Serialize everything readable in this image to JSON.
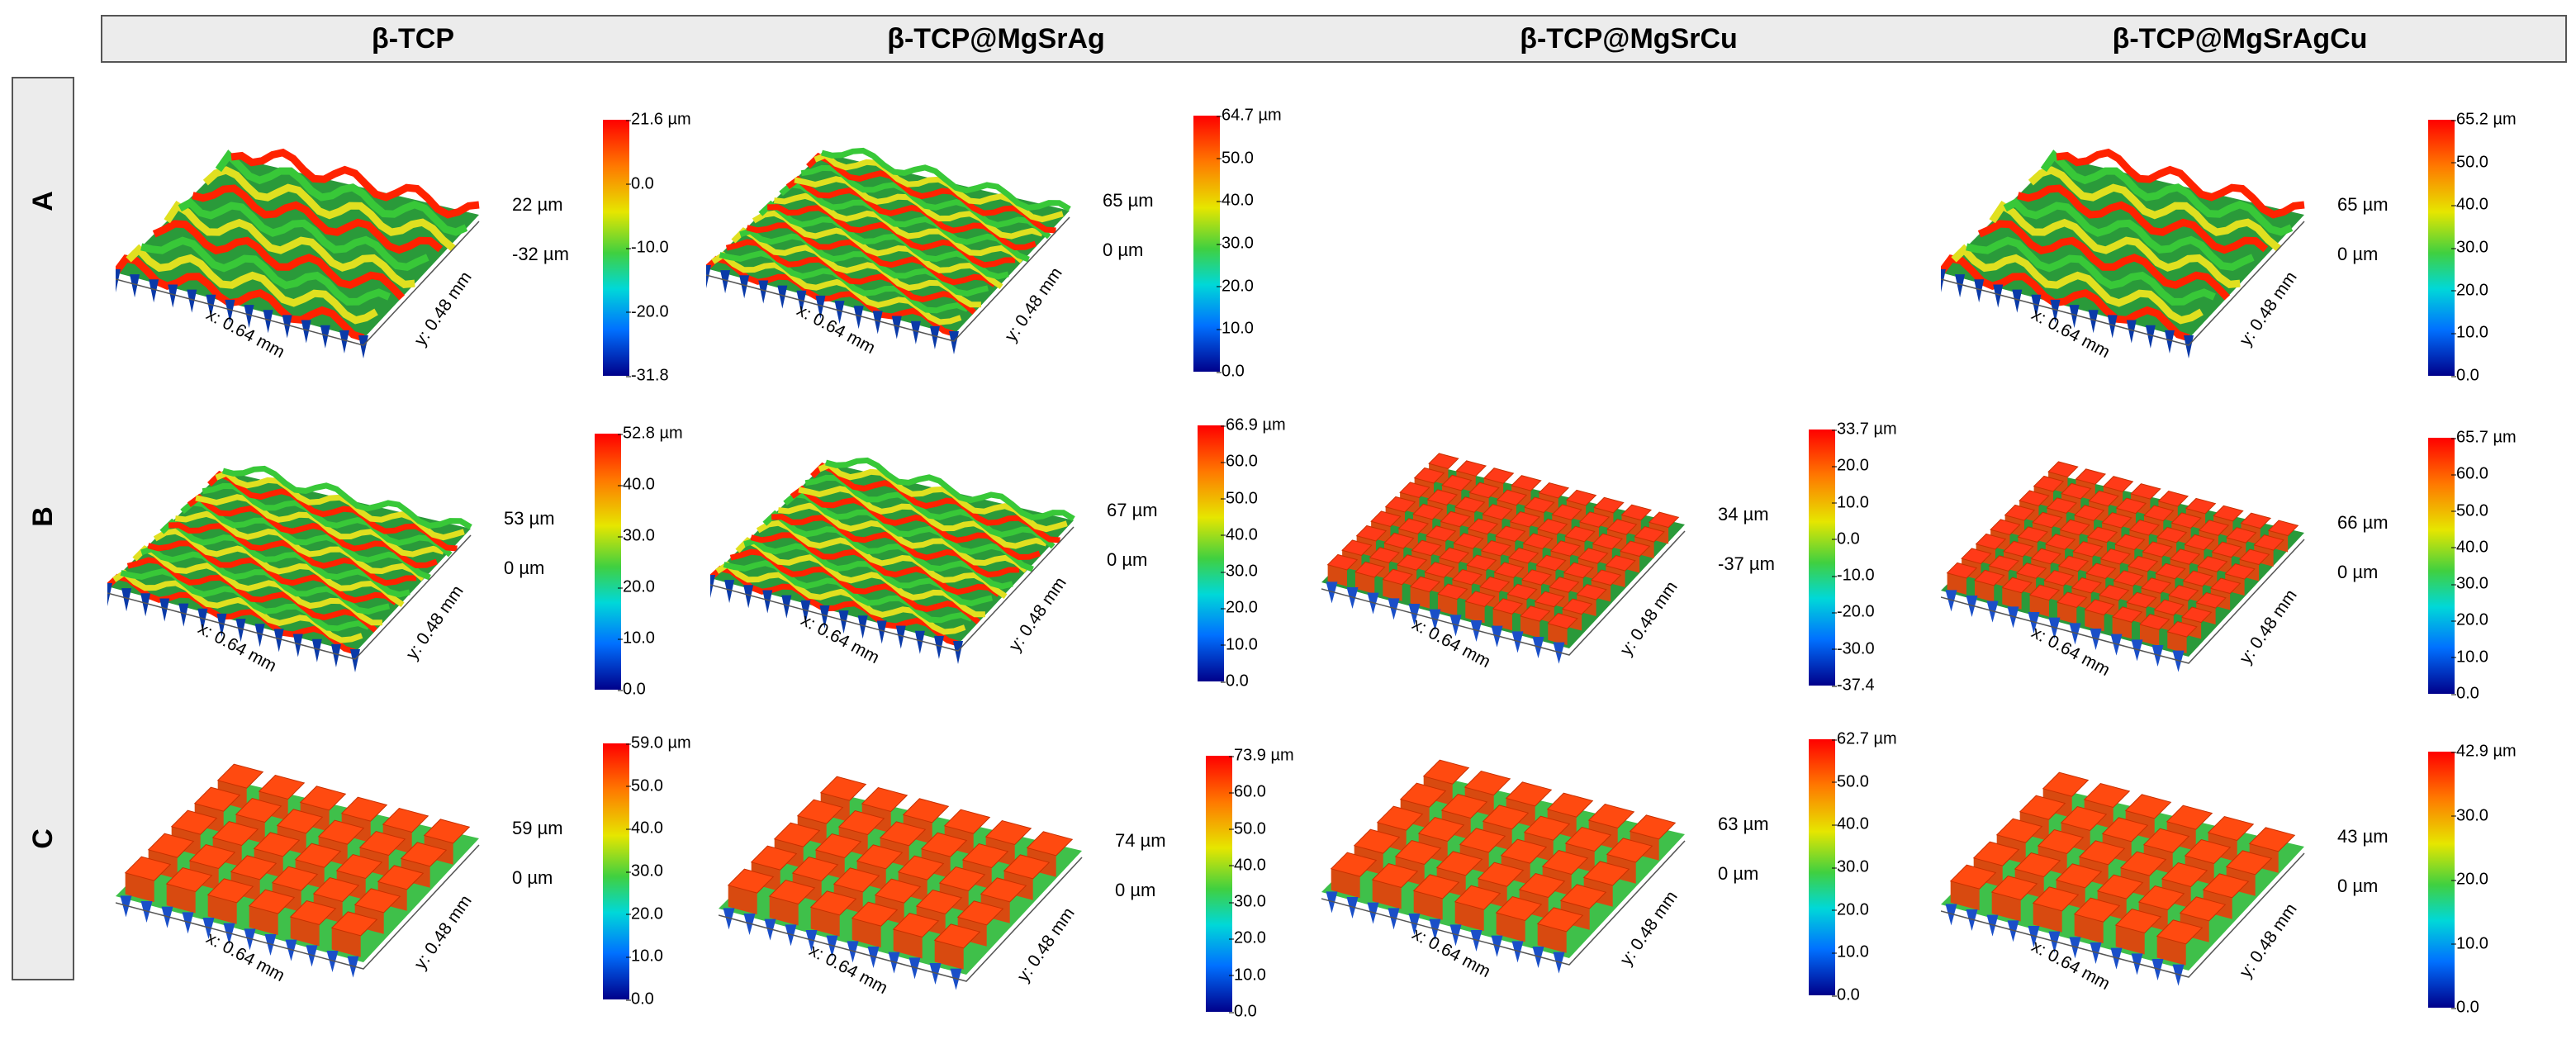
{
  "columns": [
    "β-TCP",
    "β-TCP@MgSrAg",
    "β-TCP@MgSrCu",
    "β-TCP@MgSrAgCu"
  ],
  "rows": [
    "A",
    "B",
    "C"
  ],
  "panels": [
    {
      "id": "A1",
      "row": "A",
      "col": "β-TCP",
      "scale_hi": "22 µm",
      "scale_lo": "-32 µm",
      "colorbar": [
        "21.6 µm",
        "0.0",
        "-10.0",
        "-20.0",
        "-31.8"
      ],
      "x_axis": "x: 0.64 mm",
      "y_axis": "y: 0.48 mm",
      "pattern": "ridges"
    },
    {
      "id": "A2",
      "row": "A",
      "col": "β-TCP@MgSrAg",
      "scale_hi": "65 µm",
      "scale_lo": "0 µm",
      "colorbar": [
        "64.7 µm",
        "50.0",
        "40.0",
        "30.0",
        "20.0",
        "10.0",
        "0.0"
      ],
      "x_axis": "x: 0.64 mm",
      "y_axis": "y: 0.48 mm",
      "pattern": "rough"
    },
    {
      "id": "A4",
      "row": "A",
      "col": "β-TCP@MgSrAgCu",
      "scale_hi": "65 µm",
      "scale_lo": "0 µm",
      "colorbar": [
        "65.2 µm",
        "50.0",
        "40.0",
        "30.0",
        "20.0",
        "10.0",
        "0.0"
      ],
      "x_axis": "x: 0.64 mm",
      "y_axis": "y: 0.48 mm",
      "pattern": "ridges"
    },
    {
      "id": "B1",
      "row": "B",
      "col": "β-TCP",
      "scale_hi": "53 µm",
      "scale_lo": "0 µm",
      "colorbar": [
        "52.8 µm",
        "40.0",
        "30.0",
        "20.0",
        "10.0",
        "0.0"
      ],
      "x_axis": "x: 0.64 mm",
      "y_axis": "y: 0.48 mm",
      "pattern": "rough"
    },
    {
      "id": "B2",
      "row": "B",
      "col": "β-TCP@MgSrAg",
      "scale_hi": "67 µm",
      "scale_lo": "0 µm",
      "colorbar": [
        "66.9 µm",
        "60.0",
        "50.0",
        "40.0",
        "30.0",
        "20.0",
        "10.0",
        "0.0"
      ],
      "x_axis": "x: 0.64 mm",
      "y_axis": "y: 0.48 mm",
      "pattern": "rough"
    },
    {
      "id": "B3",
      "row": "B",
      "col": "β-TCP@MgSrCu",
      "scale_hi": "34 µm",
      "scale_lo": "-37 µm",
      "colorbar": [
        "33.7 µm",
        "20.0",
        "10.0",
        "0.0",
        "-10.0",
        "-20.0",
        "-30.0",
        "-37.4"
      ],
      "x_axis": "x: 0.64 mm",
      "y_axis": "y: 0.48 mm",
      "pattern": "pillars"
    },
    {
      "id": "B4",
      "row": "B",
      "col": "β-TCP@MgSrAgCu",
      "scale_hi": "66 µm",
      "scale_lo": "0 µm",
      "colorbar": [
        "65.7 µm",
        "60.0",
        "50.0",
        "40.0",
        "30.0",
        "20.0",
        "10.0",
        "0.0"
      ],
      "x_axis": "x: 0.64 mm",
      "y_axis": "y: 0.48 mm",
      "pattern": "pillars"
    },
    {
      "id": "C1",
      "row": "C",
      "col": "β-TCP",
      "scale_hi": "59 µm",
      "scale_lo": "0 µm",
      "colorbar": [
        "59.0 µm",
        "50.0",
        "40.0",
        "30.0",
        "20.0",
        "10.0",
        "0.0"
      ],
      "x_axis": "x: 0.64 mm",
      "y_axis": "y: 0.48 mm",
      "pattern": "blocks"
    },
    {
      "id": "C2",
      "row": "C",
      "col": "β-TCP@MgSrAg",
      "scale_hi": "74 µm",
      "scale_lo": "0 µm",
      "colorbar": [
        "73.9 µm",
        "60.0",
        "50.0",
        "40.0",
        "30.0",
        "20.0",
        "10.0",
        "0.0"
      ],
      "x_axis": "x: 0.64 mm",
      "y_axis": "y: 0.48 mm",
      "pattern": "blocks"
    },
    {
      "id": "C3",
      "row": "C",
      "col": "β-TCP@MgSrCu",
      "scale_hi": "63 µm",
      "scale_lo": "0 µm",
      "colorbar": [
        "62.7 µm",
        "50.0",
        "40.0",
        "30.0",
        "20.0",
        "10.0",
        "0.0"
      ],
      "x_axis": "x: 0.64 mm",
      "y_axis": "y: 0.48 mm",
      "pattern": "blocks"
    },
    {
      "id": "C4",
      "row": "C",
      "col": "β-TCP@MgSrAgCu",
      "scale_hi": "43 µm",
      "scale_lo": "0 µm",
      "colorbar": [
        "42.9 µm",
        "30.0",
        "20.0",
        "10.0",
        "0.0"
      ],
      "x_axis": "x: 0.64 mm",
      "y_axis": "y: 0.48 mm",
      "pattern": "blocks"
    }
  ],
  "colors": {
    "high": "#ff2200",
    "mid": "#38c838",
    "low": "#0a3aa8",
    "frame": "#555555",
    "header_bg": "#ececec"
  }
}
